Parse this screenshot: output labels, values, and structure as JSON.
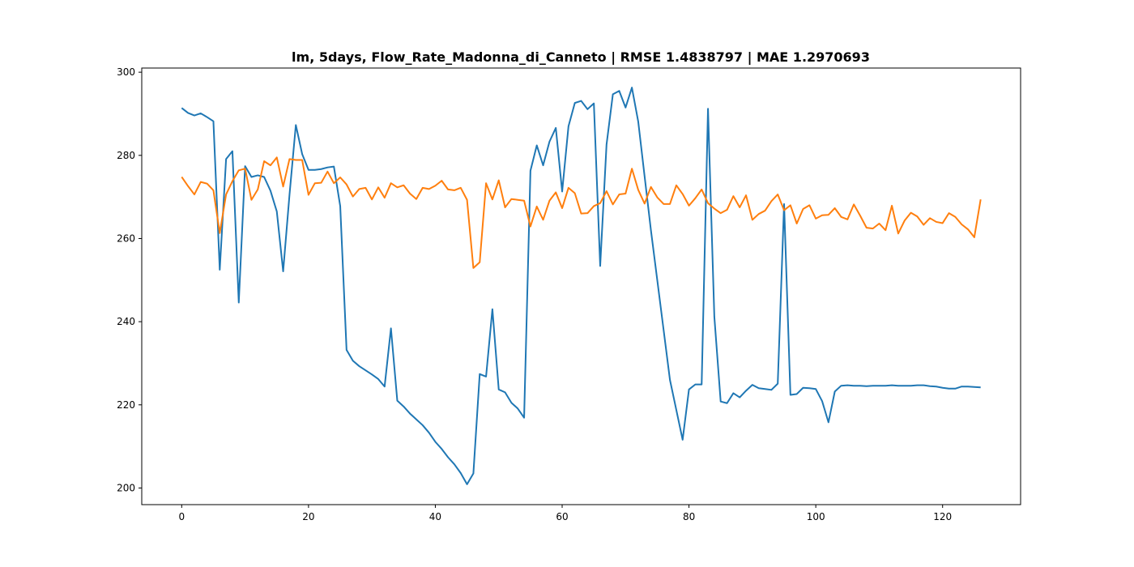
{
  "chart_data": {
    "type": "line",
    "title": "lm, 5days, Flow_Rate_Madonna_di_Canneto | RMSE 1.4838797 | MAE 1.2970693",
    "xlabel": "",
    "ylabel": "",
    "xlim": [
      -6.3,
      132.3
    ],
    "ylim": [
      196,
      301
    ],
    "x_ticks": [
      0,
      20,
      40,
      60,
      80,
      100,
      120
    ],
    "y_ticks": [
      200,
      220,
      240,
      260,
      280,
      300
    ],
    "grid": false,
    "legend": "none",
    "series": [
      {
        "color": "#1f77b4",
        "values": [
          291.4,
          290.2,
          289.6,
          290.1,
          289.2,
          288.2,
          252.5,
          279.1,
          281.0,
          244.6,
          277.4,
          274.8,
          275.2,
          274.8,
          271.5,
          266.5,
          252.1,
          270.5,
          287.3,
          280.3,
          276.5,
          276.5,
          276.7,
          277.1,
          277.3,
          267.8,
          233.2,
          230.6,
          229.3,
          228.3,
          227.3,
          226.2,
          224.4,
          238.4,
          221.0,
          219.6,
          217.9,
          216.5,
          215.1,
          213.3,
          211.1,
          209.4,
          207.4,
          205.7,
          203.6,
          200.9,
          203.5,
          227.4,
          226.8,
          243.0,
          223.7,
          223.0,
          220.5,
          219.1,
          216.9,
          276.3,
          282.4,
          277.6,
          283.3,
          286.6,
          271.3,
          287.0,
          292.6,
          293.1,
          291.1,
          292.5,
          253.4,
          282.6,
          294.7,
          295.5,
          291.5,
          296.3,
          288.1,
          275.0,
          262.0,
          250.0,
          238.0,
          226.0,
          218.8,
          211.6,
          223.7,
          224.9,
          224.9,
          291.2,
          241.2,
          220.8,
          220.4,
          222.8,
          221.8,
          223.4,
          224.8,
          224.0,
          223.8,
          223.6,
          225.1,
          268.3,
          222.4,
          222.6,
          224.1,
          224.0,
          223.8,
          220.9,
          215.8,
          223.2,
          224.6,
          224.7,
          224.6,
          224.6,
          224.5,
          224.6,
          224.6,
          224.6,
          224.7,
          224.6,
          224.6,
          224.6,
          224.7,
          224.7,
          224.5,
          224.4,
          224.1,
          223.9,
          223.9,
          224.4,
          224.4,
          224.3,
          224.2
        ]
      },
      {
        "color": "#ff7f0e",
        "values": [
          274.8,
          272.6,
          270.6,
          273.6,
          273.2,
          271.6,
          261.3,
          270.6,
          273.8,
          276.4,
          276.8,
          269.3,
          271.8,
          278.6,
          277.6,
          279.5,
          272.5,
          279.1,
          278.9,
          278.9,
          270.5,
          273.3,
          273.4,
          276.1,
          273.3,
          274.7,
          273.0,
          270.1,
          271.9,
          272.2,
          269.4,
          272.3,
          269.8,
          273.3,
          272.3,
          272.8,
          270.8,
          269.5,
          272.2,
          271.9,
          272.7,
          273.9,
          271.8,
          271.6,
          272.2,
          269.3,
          252.9,
          254.3,
          273.3,
          269.4,
          274.0,
          267.5,
          269.5,
          269.3,
          269.1,
          262.9,
          267.7,
          264.5,
          269.1,
          271.1,
          267.3,
          272.2,
          270.9,
          266.0,
          266.1,
          267.8,
          268.5,
          271.4,
          268.2,
          270.6,
          270.8,
          276.8,
          271.7,
          268.4,
          272.4,
          269.9,
          268.3,
          268.3,
          272.8,
          270.7,
          267.9,
          269.7,
          271.8,
          268.5,
          267.2,
          266.1,
          266.9,
          270.2,
          267.5,
          270.4,
          264.5,
          265.9,
          266.7,
          269.0,
          270.6,
          266.8,
          268.0,
          263.6,
          267.1,
          268.0,
          264.8,
          265.6,
          265.7,
          267.3,
          265.2,
          264.6,
          268.2,
          265.5,
          262.6,
          262.4,
          263.6,
          262.0,
          267.9,
          261.2,
          264.3,
          266.2,
          265.3,
          263.3,
          264.9,
          264.0,
          263.7,
          266.1,
          265.2,
          263.4,
          262.2,
          260.3,
          269.4
        ]
      }
    ]
  }
}
